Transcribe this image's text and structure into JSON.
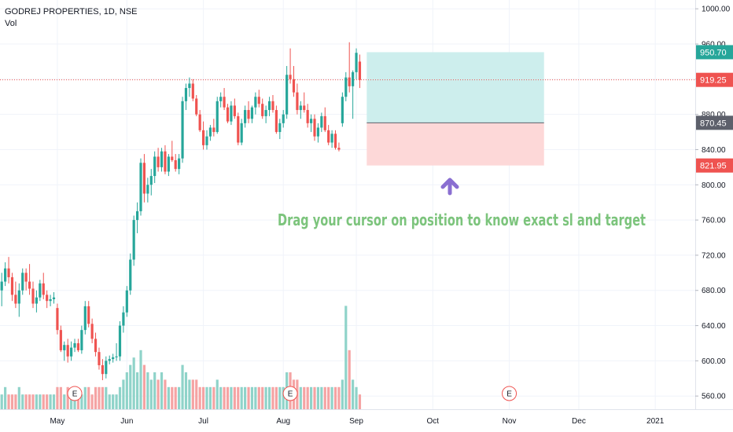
{
  "header": {
    "symbol": "GODREJ PROPERTIES, 1D, NSE",
    "volume_label": "Vol"
  },
  "annotation": {
    "text": "Drag your cursor on position to know exact sl and target",
    "color": "#7cc47c",
    "arrow_color": "#8a6fd1"
  },
  "colors": {
    "up": "#26a69a",
    "down": "#ef5350",
    "vol_up": "#8fd3c9",
    "vol_down": "#f5a3a3",
    "profit_zone": "#cdeeed",
    "loss_zone": "#fdd8d8",
    "grid": "#f0f3fa",
    "axis_line": "#e0e3eb"
  },
  "price_tags": [
    {
      "label": "950.70",
      "value": 950.7,
      "bg": "#26a69a"
    },
    {
      "label": "919.25",
      "value": 919.25,
      "bg": "#ef5350"
    },
    {
      "label": "870.45",
      "value": 870.45,
      "bg": "#5d606b"
    },
    {
      "label": "821.95",
      "value": 821.95,
      "bg": "#ef5350"
    }
  ],
  "earnings_markers": [
    {
      "label": "E",
      "date_index": 21
    },
    {
      "label": "E",
      "date_index": 83
    },
    {
      "label": "E",
      "date_index": 146
    }
  ],
  "chart_data": {
    "type": "candlestick",
    "y_axis": {
      "ticks": [
        "1000.00",
        "960.00",
        "920.00",
        "880.00",
        "840.00",
        "800.00",
        "760.00",
        "720.00",
        "680.00",
        "640.00",
        "600.00",
        "560.00"
      ],
      "ylim": [
        545,
        1010
      ]
    },
    "x_axis": {
      "ticks": [
        {
          "label": "May",
          "index": 16
        },
        {
          "label": "Jun",
          "index": 36
        },
        {
          "label": "Jul",
          "index": 58
        },
        {
          "label": "Aug",
          "index": 81
        },
        {
          "label": "Sep",
          "index": 102
        },
        {
          "label": "Oct",
          "index": 124
        },
        {
          "label": "Nov",
          "index": 146
        },
        {
          "label": "Dec",
          "index": 166
        },
        {
          "label": "2021",
          "index": 188
        }
      ],
      "xlim": [
        -0.5,
        199.5
      ]
    },
    "last_price": 919.25,
    "position": {
      "type": "long",
      "entry": 870.45,
      "target": 950.7,
      "stop_loss": 821.95,
      "start_index": 105,
      "end_index": 156
    },
    "candles": [
      [
        680,
        700,
        662,
        690,
        2
      ],
      [
        690,
        712,
        685,
        705,
        3
      ],
      [
        705,
        718,
        688,
        695,
        2
      ],
      [
        695,
        700,
        668,
        675,
        2
      ],
      [
        675,
        690,
        660,
        665,
        2
      ],
      [
        665,
        688,
        650,
        680,
        3
      ],
      [
        680,
        705,
        675,
        700,
        2
      ],
      [
        700,
        705,
        680,
        690,
        2
      ],
      [
        690,
        710,
        675,
        682,
        2
      ],
      [
        682,
        690,
        660,
        665,
        2
      ],
      [
        665,
        680,
        655,
        672,
        2
      ],
      [
        672,
        692,
        668,
        688,
        2
      ],
      [
        688,
        700,
        670,
        675,
        2
      ],
      [
        675,
        680,
        660,
        668,
        2
      ],
      [
        668,
        675,
        662,
        670,
        2
      ],
      [
        670,
        678,
        665,
        672,
        2
      ],
      [
        660,
        665,
        630,
        635,
        3
      ],
      [
        635,
        640,
        610,
        612,
        3
      ],
      [
        612,
        622,
        600,
        618,
        2
      ],
      [
        618,
        625,
        598,
        605,
        3
      ],
      [
        605,
        622,
        600,
        615,
        2
      ],
      [
        615,
        625,
        610,
        620,
        2
      ],
      [
        620,
        625,
        610,
        612,
        2
      ],
      [
        612,
        640,
        608,
        635,
        2
      ],
      [
        635,
        668,
        630,
        662,
        3
      ],
      [
        662,
        668,
        638,
        642,
        3
      ],
      [
        642,
        648,
        620,
        625,
        2
      ],
      [
        625,
        632,
        605,
        610,
        3
      ],
      [
        610,
        615,
        590,
        595,
        3
      ],
      [
        595,
        602,
        578,
        585,
        3
      ],
      [
        585,
        605,
        580,
        600,
        3
      ],
      [
        600,
        606,
        596,
        602,
        2
      ],
      [
        602,
        608,
        598,
        604,
        2
      ],
      [
        604,
        620,
        600,
        605,
        2
      ],
      [
        605,
        645,
        600,
        640,
        3
      ],
      [
        640,
        662,
        632,
        655,
        4
      ],
      [
        655,
        685,
        650,
        680,
        5
      ],
      [
        680,
        722,
        675,
        715,
        6
      ],
      [
        715,
        765,
        708,
        760,
        7
      ],
      [
        760,
        780,
        745,
        770,
        5
      ],
      [
        770,
        830,
        765,
        825,
        8
      ],
      [
        825,
        835,
        780,
        790,
        6
      ],
      [
        790,
        808,
        780,
        800,
        5
      ],
      [
        800,
        818,
        788,
        810,
        4
      ],
      [
        810,
        838,
        802,
        832,
        5
      ],
      [
        832,
        842,
        815,
        820,
        4
      ],
      [
        820,
        842,
        815,
        838,
        5
      ],
      [
        838,
        845,
        812,
        815,
        4
      ],
      [
        815,
        835,
        810,
        832,
        3
      ],
      [
        832,
        850,
        826,
        828,
        3
      ],
      [
        828,
        835,
        815,
        818,
        3
      ],
      [
        818,
        835,
        812,
        830,
        3
      ],
      [
        830,
        900,
        825,
        895,
        6
      ],
      [
        895,
        915,
        885,
        910,
        5
      ],
      [
        910,
        922,
        900,
        915,
        4
      ],
      [
        915,
        920,
        895,
        898,
        4
      ],
      [
        898,
        902,
        878,
        880,
        4
      ],
      [
        880,
        885,
        860,
        862,
        3
      ],
      [
        862,
        872,
        840,
        845,
        3
      ],
      [
        845,
        862,
        840,
        855,
        3
      ],
      [
        855,
        868,
        850,
        865,
        3
      ],
      [
        865,
        875,
        855,
        860,
        3
      ],
      [
        860,
        900,
        858,
        895,
        4
      ],
      [
        895,
        905,
        888,
        900,
        3
      ],
      [
        900,
        910,
        885,
        888,
        3
      ],
      [
        888,
        892,
        870,
        872,
        3
      ],
      [
        872,
        895,
        868,
        890,
        3
      ],
      [
        890,
        898,
        875,
        878,
        3
      ],
      [
        878,
        882,
        845,
        848,
        3
      ],
      [
        848,
        875,
        845,
        870,
        3
      ],
      [
        870,
        890,
        865,
        885,
        3
      ],
      [
        885,
        895,
        870,
        875,
        3
      ],
      [
        875,
        890,
        870,
        888,
        3
      ],
      [
        888,
        905,
        880,
        900,
        3
      ],
      [
        900,
        908,
        888,
        892,
        3
      ],
      [
        892,
        898,
        875,
        878,
        3
      ],
      [
        878,
        890,
        870,
        885,
        3
      ],
      [
        885,
        900,
        878,
        895,
        3
      ],
      [
        895,
        902,
        882,
        885,
        3
      ],
      [
        885,
        890,
        858,
        860,
        3
      ],
      [
        860,
        875,
        852,
        870,
        3
      ],
      [
        870,
        885,
        865,
        880,
        3
      ],
      [
        880,
        935,
        875,
        925,
        5
      ],
      [
        925,
        955,
        915,
        920,
        5
      ],
      [
        920,
        935,
        900,
        905,
        4
      ],
      [
        905,
        915,
        880,
        885,
        4
      ],
      [
        885,
        895,
        875,
        890,
        3
      ],
      [
        890,
        905,
        882,
        885,
        3
      ],
      [
        885,
        892,
        865,
        870,
        3
      ],
      [
        870,
        880,
        860,
        875,
        3
      ],
      [
        875,
        880,
        850,
        855,
        3
      ],
      [
        855,
        870,
        848,
        865,
        3
      ],
      [
        865,
        882,
        860,
        878,
        3
      ],
      [
        878,
        888,
        860,
        862,
        3
      ],
      [
        862,
        868,
        845,
        848,
        3
      ],
      [
        848,
        862,
        842,
        858,
        3
      ],
      [
        858,
        862,
        840,
        842,
        3
      ],
      [
        842,
        848,
        838,
        840,
        3
      ],
      [
        870,
        905,
        866,
        900,
        4
      ],
      [
        900,
        928,
        895,
        922,
        14
      ],
      [
        922,
        962,
        905,
        912,
        8
      ],
      [
        912,
        930,
        875,
        928,
        4
      ],
      [
        928,
        955,
        920,
        950,
        3
      ],
      [
        940,
        948,
        910,
        919.25,
        2
      ]
    ]
  }
}
